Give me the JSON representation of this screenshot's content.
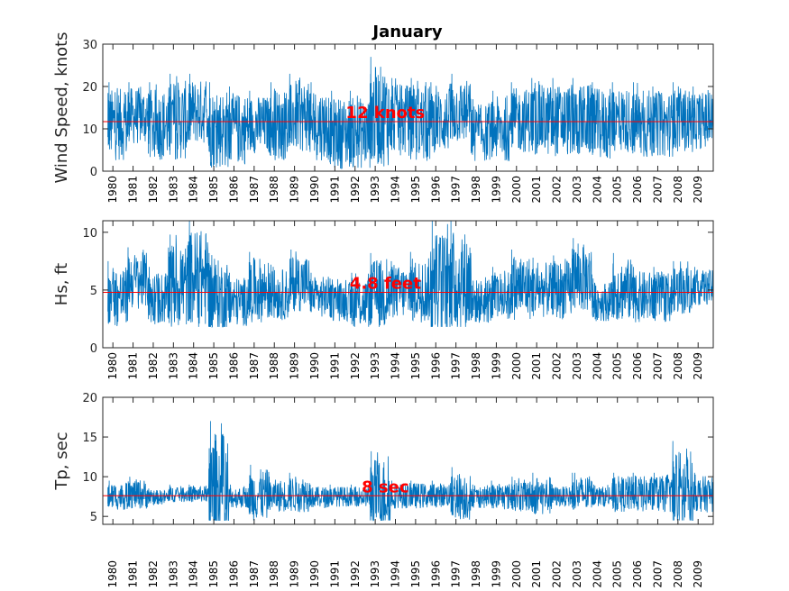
{
  "title": "January",
  "colors": {
    "series": "#0072bd",
    "mean_line": "#ff0000",
    "annotation": "#ff0000",
    "axes": "#262626"
  },
  "x_years": [
    "1980",
    "1981",
    "1982",
    "1983",
    "1984",
    "1985",
    "1986",
    "1987",
    "1988",
    "1989",
    "1990",
    "1991",
    "1992",
    "1993",
    "1994",
    "1995",
    "1996",
    "1997",
    "1998",
    "1999",
    "2000",
    "2001",
    "2002",
    "2003",
    "2004",
    "2005",
    "2006",
    "2007",
    "2008",
    "2009"
  ],
  "chart_data": [
    {
      "type": "line",
      "ylabel": "Wind Speed, knots",
      "ylim": [
        0,
        30
      ],
      "yticks": [
        "0",
        "10",
        "20",
        "30"
      ],
      "xlim": [
        1979.5,
        2009.75
      ],
      "series_description": "daily January values, 1979-2009",
      "min": 0,
      "max": 27,
      "mean": 11.7,
      "mean_line": 11.7,
      "annotation": "12 knots",
      "annotation_year": 1993.5,
      "grid": false,
      "yearly_levels": [
        11,
        13,
        11,
        12,
        14,
        10,
        10,
        11,
        11,
        13,
        11,
        9,
        9,
        13,
        12,
        11,
        12,
        14,
        9,
        10,
        12,
        12,
        12,
        12,
        11,
        12,
        11,
        11,
        12,
        12
      ],
      "yearly_peaks": [
        21,
        21,
        21,
        23,
        23,
        21,
        20,
        19,
        21,
        23,
        21,
        19,
        19,
        27,
        22,
        22,
        21,
        23,
        17,
        19,
        21,
        22,
        22,
        22,
        21,
        21,
        21,
        20,
        21,
        20
      ]
    },
    {
      "type": "line",
      "ylabel": "Hs, ft",
      "ylim": [
        0,
        11
      ],
      "yticks": [
        "0",
        "5",
        "10"
      ],
      "xlim": [
        1979.5,
        2009.75
      ],
      "min": 1.8,
      "max": 11,
      "mean": 4.8,
      "mean_line": 4.8,
      "annotation": "4.8 feet",
      "annotation_year": 1993.5,
      "grid": false,
      "yearly_levels": [
        4.4,
        5.8,
        4.3,
        5.4,
        6.0,
        4.4,
        4.0,
        5.0,
        4.6,
        5.6,
        4.4,
        4.0,
        3.9,
        4.6,
        4.8,
        5.0,
        5.2,
        5.6,
        4.0,
        4.4,
        5.2,
        5.0,
        5.0,
        6.0,
        4.0,
        5.0,
        4.4,
        4.4,
        5.0,
        5.2
      ],
      "yearly_peaks": [
        7.5,
        8.7,
        7.0,
        9.8,
        11,
        8.2,
        6.5,
        8.3,
        7.2,
        8.5,
        6.5,
        6.0,
        6.5,
        8.2,
        7.5,
        8.3,
        11,
        11,
        6.3,
        7.0,
        8.5,
        7.8,
        8.0,
        9.5,
        6.0,
        8.2,
        7.0,
        7.0,
        7.5,
        7.0
      ]
    },
    {
      "type": "line",
      "ylabel": "Tp, sec",
      "ylim": [
        4,
        20
      ],
      "yticks": [
        "5",
        "10",
        "15",
        "20"
      ],
      "xlim": [
        1979.5,
        2009.75
      ],
      "min": 4.5,
      "max": 17,
      "mean": 7.6,
      "mean_line": 7.6,
      "annotation": "8 sec",
      "annotation_year": 1993.5,
      "grid": false,
      "yearly_levels": [
        7.5,
        7.8,
        7.4,
        7.8,
        7.8,
        7.8,
        7.4,
        7.7,
        7.6,
        7.8,
        7.4,
        7.5,
        7.5,
        7.8,
        7.6,
        7.6,
        7.7,
        7.6,
        7.4,
        7.5,
        7.6,
        7.6,
        7.5,
        7.8,
        7.5,
        7.8,
        7.8,
        7.8,
        7.6,
        7.8
      ],
      "yearly_peaks": [
        9.5,
        10,
        8.5,
        9,
        9,
        17,
        9,
        11.5,
        10,
        10.5,
        9,
        9,
        9,
        13.2,
        9.5,
        9.5,
        9.5,
        11.2,
        9,
        9.5,
        10,
        10.5,
        9,
        10.5,
        9,
        10.5,
        10.5,
        10.5,
        14.5,
        10.5
      ]
    }
  ]
}
